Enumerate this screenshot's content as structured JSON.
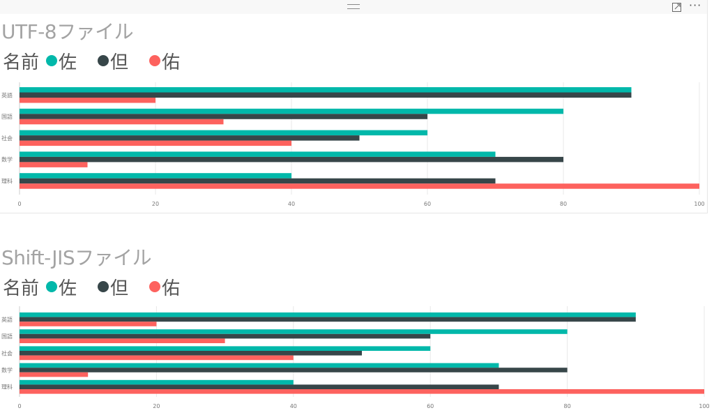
{
  "colors": {
    "series1": "#01B8AA",
    "series2": "#374649",
    "series3": "#FD625E"
  },
  "icons": {
    "drag": "drag-handle-icon",
    "focus": "focus-mode-icon",
    "more": "more-options-icon"
  },
  "header": {
    "more_label": "···"
  },
  "chart_data": [
    {
      "type": "bar",
      "orientation": "horizontal",
      "title": "UTF-8ファイル",
      "legend_title": "名前",
      "legend_position": "top-left",
      "categories": [
        "英語",
        "国語",
        "社会",
        "数学",
        "理科"
      ],
      "series": [
        {
          "name": "佐",
          "values": [
            90,
            80,
            60,
            70,
            40
          ]
        },
        {
          "name": "但",
          "values": [
            90,
            60,
            50,
            80,
            70
          ]
        },
        {
          "name": "佑",
          "values": [
            20,
            30,
            40,
            10,
            100
          ]
        }
      ],
      "xlim": [
        0,
        100
      ],
      "xticks": [
        "0",
        "20",
        "40",
        "60",
        "80",
        "100"
      ],
      "grid": true
    },
    {
      "type": "bar",
      "orientation": "horizontal",
      "title": "Shift-JISファイル",
      "legend_title": "名前",
      "legend_position": "top-left",
      "categories": [
        "英語",
        "国語",
        "社会",
        "数学",
        "理科"
      ],
      "series": [
        {
          "name": "佐",
          "values": [
            90,
            80,
            60,
            70,
            40
          ]
        },
        {
          "name": "但",
          "values": [
            90,
            60,
            50,
            80,
            70
          ]
        },
        {
          "name": "佑",
          "values": [
            20,
            30,
            40,
            10,
            100
          ]
        }
      ],
      "xlim": [
        0,
        100
      ],
      "xticks": [
        "0",
        "20",
        "40",
        "60",
        "80",
        "100"
      ],
      "grid": true
    }
  ]
}
